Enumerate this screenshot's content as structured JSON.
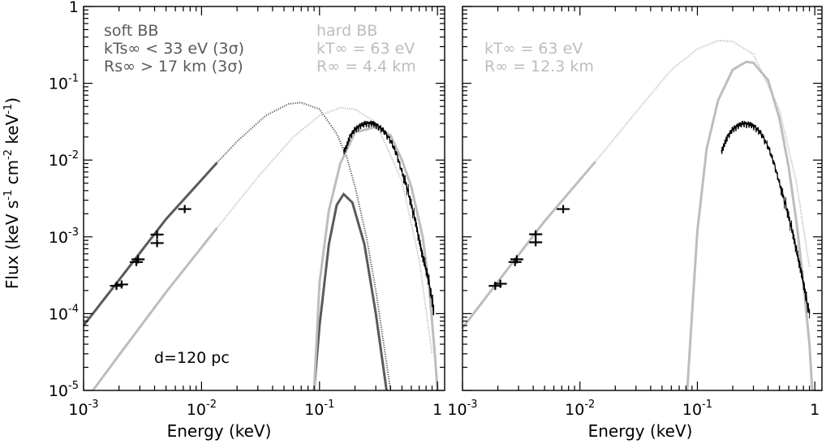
{
  "colors": {
    "dark": "#5a5a5a",
    "light": "#bdbdbd",
    "black": "#000000"
  },
  "chart_data": [
    {
      "type": "line",
      "panel": "left",
      "xscale": "log",
      "yscale": "log",
      "xlim": [
        0.001,
        1.15
      ],
      "ylim": [
        1e-05,
        1
      ],
      "xlabel": "Energy (keV)",
      "ylabel": "Flux (keV s-1 cm-2 keV-1)",
      "xticks": [
        {
          "v": 0.001,
          "base": "10",
          "exp": "-3"
        },
        {
          "v": 0.01,
          "base": "10",
          "exp": "-2"
        },
        {
          "v": 0.1,
          "base": "10",
          "exp": "-1"
        },
        {
          "v": 1,
          "base": "1",
          "exp": ""
        }
      ],
      "yticks": [
        {
          "v": 1e-05,
          "base": "10",
          "exp": "-5"
        },
        {
          "v": 0.0001,
          "base": "10",
          "exp": "-4"
        },
        {
          "v": 0.001,
          "base": "10",
          "exp": "-3"
        },
        {
          "v": 0.01,
          "base": "10",
          "exp": "-2"
        },
        {
          "v": 0.1,
          "base": "10",
          "exp": "-1"
        },
        {
          "v": 1,
          "base": "1",
          "exp": ""
        }
      ],
      "annotations": {
        "soft_title": "soft BB",
        "soft_kt": "kTs∞ < 33 eV (3σ)",
        "soft_r": "Rs∞ > 17 km (3σ)",
        "hard_title": "hard BB",
        "hard_kt": "kT∞ = 63 eV",
        "hard_r": "R∞ = 4.4 km",
        "distance": "d=120 pc"
      },
      "series": [
        {
          "style": "dark-solid",
          "points": [
            [
              0.001,
              7e-05
            ],
            [
              0.002,
              0.000275
            ],
            [
              0.005,
              0.0017
            ],
            [
              0.0135,
              0.0092
            ]
          ]
        },
        {
          "style": "dark-dotted",
          "points": [
            [
              0.0135,
              0.0092
            ],
            [
              0.02,
              0.0175
            ],
            [
              0.035,
              0.038
            ],
            [
              0.055,
              0.054
            ],
            [
              0.07,
              0.056
            ],
            [
              0.1,
              0.046
            ],
            [
              0.14,
              0.022
            ],
            [
              0.17,
              0.011
            ],
            [
              0.2,
              0.0045
            ],
            [
              0.25,
              0.001
            ],
            [
              0.3,
              0.0002
            ],
            [
              0.36,
              3e-05
            ],
            [
              0.4,
              1e-05
            ]
          ]
        },
        {
          "style": "dark-solid",
          "points": [
            [
              0.09,
              1e-05
            ],
            [
              0.1,
              7e-05
            ],
            [
              0.12,
              0.0008
            ],
            [
              0.14,
              0.0026
            ],
            [
              0.16,
              0.0036
            ],
            [
              0.19,
              0.0028
            ],
            [
              0.24,
              0.0008
            ],
            [
              0.3,
              0.0001
            ],
            [
              0.37,
              1e-05
            ]
          ]
        },
        {
          "style": "light-solid",
          "points": [
            [
              0.0012,
              1e-05
            ],
            [
              0.002,
              2.9e-05
            ],
            [
              0.005,
              0.00019
            ],
            [
              0.0135,
              0.0013
            ]
          ]
        },
        {
          "style": "light-dotted",
          "points": [
            [
              0.0135,
              0.0013
            ],
            [
              0.03,
              0.006
            ],
            [
              0.06,
              0.02
            ],
            [
              0.1,
              0.038
            ],
            [
              0.15,
              0.048
            ],
            [
              0.2,
              0.046
            ],
            [
              0.3,
              0.031
            ],
            [
              0.5,
              0.0053
            ],
            [
              0.7,
              0.0005
            ],
            [
              0.9,
              3e-05
            ]
          ]
        },
        {
          "style": "light-solid",
          "points": [
            [
              0.09,
              1e-05
            ],
            [
              0.1,
              0.00025
            ],
            [
              0.12,
              0.0022
            ],
            [
              0.15,
              0.009
            ],
            [
              0.2,
              0.023
            ],
            [
              0.3,
              0.027
            ],
            [
              0.4,
              0.021
            ],
            [
              0.5,
              0.01
            ],
            [
              0.6,
              0.0045
            ],
            [
              0.75,
              0.001
            ],
            [
              0.85,
              0.00022
            ],
            [
              0.95,
              3e-05
            ],
            [
              1.0,
              1e-05
            ]
          ]
        },
        {
          "style": "black-noisy",
          "points": [
            [
              0.16,
              0.013
            ],
            [
              0.17,
              0.015
            ],
            [
              0.18,
              0.02
            ],
            [
              0.2,
              0.025
            ],
            [
              0.22,
              0.028
            ],
            [
              0.25,
              0.03
            ],
            [
              0.28,
              0.03
            ],
            [
              0.31,
              0.028
            ],
            [
              0.35,
              0.024
            ],
            [
              0.4,
              0.018
            ],
            [
              0.45,
              0.012
            ],
            [
              0.5,
              0.007
            ],
            [
              0.55,
              0.0045
            ],
            [
              0.6,
              0.0026
            ],
            [
              0.65,
              0.0016
            ],
            [
              0.7,
              0.0009
            ],
            [
              0.75,
              0.00055
            ],
            [
              0.8,
              0.00038
            ],
            [
              0.85,
              0.00025
            ],
            [
              0.9,
              0.00015
            ],
            [
              0.93,
              0.00011
            ]
          ]
        }
      ],
      "optical_points": [
        [
          0.0019,
          0.00023
        ],
        [
          0.0021,
          0.00024
        ],
        [
          0.0028,
          0.00047
        ],
        [
          0.0029,
          0.00051
        ],
        [
          0.0042,
          0.00083
        ],
        [
          0.0042,
          0.00107
        ],
        [
          0.0072,
          0.0023
        ]
      ]
    },
    {
      "type": "line",
      "panel": "right",
      "xscale": "log",
      "yscale": "log",
      "xlim": [
        0.001,
        1.15
      ],
      "ylim": [
        1e-05,
        1
      ],
      "xlabel": "Energy (keV)",
      "xticks": [
        {
          "v": 0.001,
          "base": "10",
          "exp": "-3"
        },
        {
          "v": 0.01,
          "base": "10",
          "exp": "-2"
        },
        {
          "v": 0.1,
          "base": "10",
          "exp": "-1"
        },
        {
          "v": 1,
          "base": "1",
          "exp": ""
        }
      ],
      "annotations": {
        "kt": "kT∞ = 63 eV",
        "r": "R∞ = 12.3 km"
      },
      "series": [
        {
          "style": "light-solid",
          "points": [
            [
              0.001,
              6.5e-05
            ],
            [
              0.002,
              0.00026
            ],
            [
              0.005,
              0.0016
            ],
            [
              0.0135,
              0.0095
            ]
          ]
        },
        {
          "style": "light-dotted",
          "points": [
            [
              0.0135,
              0.0095
            ],
            [
              0.03,
              0.042
            ],
            [
              0.06,
              0.15
            ],
            [
              0.1,
              0.28
            ],
            [
              0.15,
              0.36
            ],
            [
              0.2,
              0.35
            ],
            [
              0.3,
              0.24
            ],
            [
              0.5,
              0.045
            ],
            [
              0.7,
              0.005
            ],
            [
              0.9,
              0.0004
            ]
          ]
        },
        {
          "style": "light-solid",
          "points": [
            [
              0.082,
              1e-05
            ],
            [
              0.09,
              0.0001
            ],
            [
              0.1,
              0.0012
            ],
            [
              0.12,
              0.014
            ],
            [
              0.15,
              0.06
            ],
            [
              0.2,
              0.15
            ],
            [
              0.26,
              0.19
            ],
            [
              0.3,
              0.185
            ],
            [
              0.4,
              0.11
            ],
            [
              0.5,
              0.035
            ],
            [
              0.6,
              0.008
            ],
            [
              0.7,
              0.0015
            ],
            [
              0.8,
              0.00025
            ],
            [
              0.9,
              4e-05
            ],
            [
              0.95,
              1e-05
            ]
          ]
        },
        {
          "style": "black-noisy",
          "points": [
            [
              0.16,
              0.013
            ],
            [
              0.17,
              0.016
            ],
            [
              0.18,
              0.02
            ],
            [
              0.2,
              0.025
            ],
            [
              0.22,
              0.028
            ],
            [
              0.25,
              0.03
            ],
            [
              0.28,
              0.029
            ],
            [
              0.31,
              0.027
            ],
            [
              0.35,
              0.022
            ],
            [
              0.4,
              0.015
            ],
            [
              0.45,
              0.009
            ],
            [
              0.5,
              0.005
            ],
            [
              0.55,
              0.003
            ],
            [
              0.6,
              0.0018
            ],
            [
              0.65,
              0.0011
            ],
            [
              0.7,
              0.00065
            ],
            [
              0.75,
              0.0004
            ],
            [
              0.8,
              0.00025
            ],
            [
              0.85,
              0.00015
            ],
            [
              0.9,
              0.0001
            ]
          ]
        }
      ],
      "optical_points": [
        [
          0.0019,
          0.00023
        ],
        [
          0.0021,
          0.000245
        ],
        [
          0.0028,
          0.00047
        ],
        [
          0.0029,
          0.00051
        ],
        [
          0.0042,
          0.00085
        ],
        [
          0.0042,
          0.00108
        ],
        [
          0.0072,
          0.0023
        ]
      ]
    }
  ]
}
